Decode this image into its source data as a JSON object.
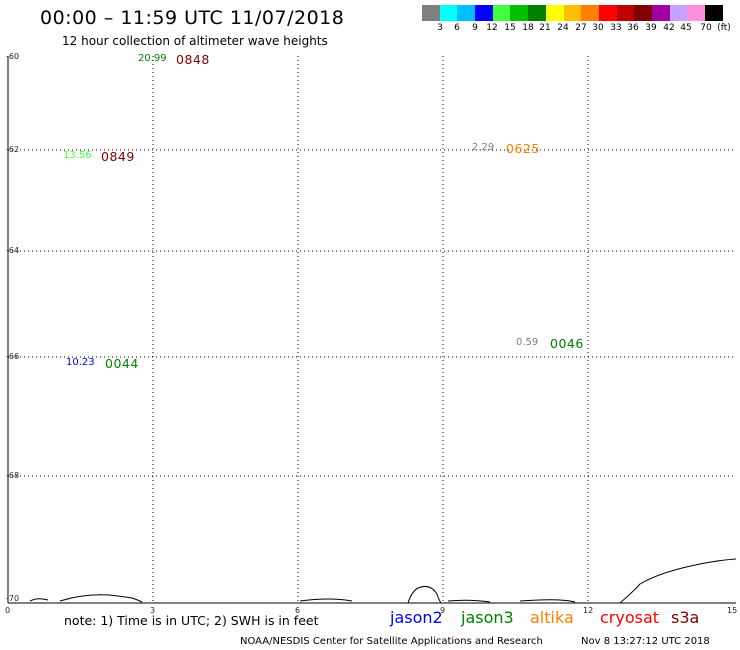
{
  "header": {
    "title": "00:00 – 11:59 UTC 11/07/2018",
    "subtitle": "12 hour collection of altimeter wave heights"
  },
  "colorbar": {
    "colors": [
      "#7f7f7f",
      "#00ffff",
      "#00bfff",
      "#0000ff",
      "#40ff40",
      "#00c000",
      "#008000",
      "#ffff00",
      "#ffbf00",
      "#ff8000",
      "#ff0000",
      "#c00000",
      "#800000",
      "#a000a0",
      "#c8a0ff",
      "#ff90e0",
      "#000000"
    ],
    "labels": [
      "3",
      "6",
      "9",
      "12",
      "15",
      "18",
      "21",
      "24",
      "27",
      "30",
      "33",
      "36",
      "39",
      "42",
      "45",
      "70",
      "(ft)"
    ]
  },
  "axes": {
    "lat_labels": [
      "-60",
      "-62",
      "-64",
      "-66",
      "-68",
      "-70"
    ],
    "lon_labels": [
      "0",
      "3",
      "6",
      "9",
      "12",
      "15"
    ]
  },
  "observations": [
    {
      "value": "20.99",
      "time": "0848",
      "value_color": "#008000",
      "time_color": "#800000"
    },
    {
      "value": "13.56",
      "time": "0849",
      "value_color": "#40ff40",
      "time_color": "#800000"
    },
    {
      "value": "2.29",
      "time": "0625",
      "value_color": "#7f7f7f",
      "time_color": "#ff8000"
    },
    {
      "value": "0.59",
      "time": "0046",
      "value_color": "#7f7f7f",
      "time_color": "#008000"
    },
    {
      "value": "10.23",
      "time": "0044",
      "value_color": "#0000ff",
      "time_color": "#008000"
    }
  ],
  "footer": {
    "note": "note: 1) Time is in UTC; 2) SWH is in feet",
    "legend": [
      {
        "name": "jason2",
        "color": "#0000ff"
      },
      {
        "name": "jason3",
        "color": "#008000"
      },
      {
        "name": "altika",
        "color": "#ff8000"
      },
      {
        "name": "cryosat",
        "color": "#ff0000"
      },
      {
        "name": "s3a",
        "color": "#800000"
      }
    ],
    "credit": "NOAA/NESDIS Center for Satellite Applications and Research",
    "timestamp": "Nov  8 13:27:12 UTC 2018"
  }
}
